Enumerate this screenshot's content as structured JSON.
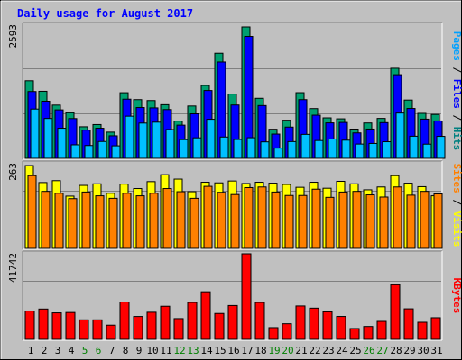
{
  "chart_data": {
    "type": "bar",
    "title": "Daily usage for August 2017",
    "categories": [
      "1",
      "2",
      "3",
      "4",
      "5",
      "6",
      "7",
      "8",
      "9",
      "10",
      "11",
      "12",
      "13",
      "14",
      "15",
      "16",
      "17",
      "18",
      "19",
      "20",
      "21",
      "22",
      "23",
      "24",
      "25",
      "26",
      "27",
      "28",
      "29",
      "30",
      "31"
    ],
    "weekend_days": [
      "5",
      "6",
      "12",
      "13",
      "19",
      "20",
      "26",
      "27"
    ],
    "panels": [
      {
        "id": "hits-files-pages",
        "max_label": "2593",
        "ymax": 2593,
        "side_labels": [
          {
            "text": "Pages",
            "color": "#00a0ff"
          },
          {
            "text": " / ",
            "color": "#000000"
          },
          {
            "text": "Files",
            "color": "#0000ff"
          },
          {
            "text": " / ",
            "color": "#000000"
          },
          {
            "text": "Hits",
            "color": "#008080"
          }
        ],
        "series": [
          {
            "name": "Hits",
            "color": "#00a070",
            "values": [
              1531,
              1324,
              1051,
              900,
              623,
              667,
              517,
              1295,
              1159,
              1141,
              1059,
              735,
              1033,
              1439,
              2074,
              1269,
              2593,
              1185,
              574,
              752,
              1296,
              982,
              799,
              780,
              577,
              698,
              788,
              1777,
              1151,
              888,
              867
            ]
          },
          {
            "name": "Files",
            "color": "#0000ff",
            "values": [
              1319,
              1128,
              957,
              785,
              557,
              594,
              445,
              1168,
              1003,
              996,
              963,
              655,
              879,
              1339,
              1901,
              1053,
              2406,
              1042,
              479,
              617,
              1159,
              852,
              700,
              709,
              502,
              578,
              705,
              1650,
              985,
              774,
              738
            ]
          },
          {
            "name": "Pages",
            "color": "#00c0ff",
            "values": [
              973,
              787,
              594,
              267,
              253,
              333,
              247,
              832,
              696,
              714,
              569,
              370,
              405,
              771,
              421,
              373,
              407,
              325,
              202,
              331,
              473,
              352,
              382,
              359,
              282,
              294,
              328,
              894,
              437,
              280,
              434
            ]
          }
        ]
      },
      {
        "id": "visits-sites",
        "max_label": "263",
        "ymax": 263,
        "side_labels": [
          {
            "text": "Sites",
            "color": "#ff8000"
          },
          {
            "text": " / ",
            "color": "#000000"
          },
          {
            "text": "Visits",
            "color": "#ffff00"
          }
        ],
        "series": [
          {
            "name": "Visits",
            "color": "#ffff00",
            "values": [
              263,
              209,
              215,
              166,
              200,
              205,
              175,
              204,
              190,
              212,
              234,
              220,
              180,
              210,
              208,
              214,
              206,
              210,
              207,
              203,
              194,
              210,
              191,
              213,
              205,
              186,
              195,
              231,
              207,
              196,
              167
            ]
          },
          {
            "name": "Sites",
            "color": "#ff8000",
            "values": [
              231,
              181,
              175,
              158,
              179,
              167,
              159,
              175,
              167,
              175,
              190,
              180,
              159,
              197,
              178,
              171,
              193,
              195,
              179,
              168,
              168,
              188,
              162,
              179,
              181,
              170,
              163,
              195,
              169,
              181,
              173
            ]
          }
        ]
      },
      {
        "id": "kbytes",
        "max_label": "41742",
        "ymax": 41742,
        "side_labels": [
          {
            "text": "KBytes",
            "color": "#ff0000"
          }
        ],
        "series": [
          {
            "name": "KBytes",
            "color": "#ff0000",
            "values": [
              13822,
              14802,
              12939,
              13117,
              9522,
              9522,
              6930,
              18230,
              11160,
              13225,
              16156,
              10136,
              18010,
              23220,
              12640,
              16520,
              41742,
              18010,
              5730,
              7620,
              16296,
              15230,
              13440,
              11180,
              5280,
              6290,
              8780,
              26650,
              14900,
              8350,
              10560
            ]
          }
        ]
      }
    ]
  }
}
